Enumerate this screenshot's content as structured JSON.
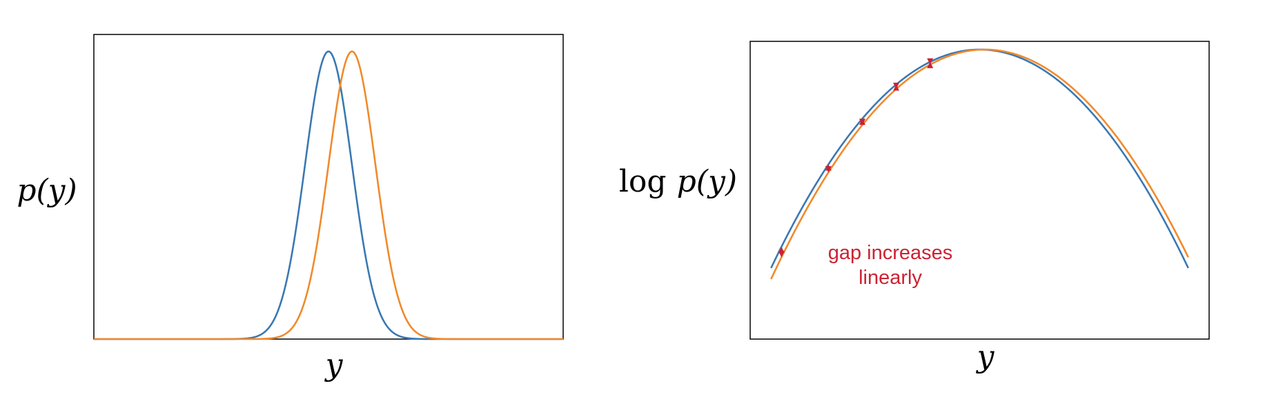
{
  "colors": {
    "blue": "#3a78b3",
    "orange": "#f08a2b",
    "annotation": "#cc2233",
    "axes": "#000000"
  },
  "chart_data": [
    {
      "type": "line",
      "xlabel": "y",
      "ylabel": "p(y)",
      "xlim": [
        -10,
        10
      ],
      "ylim": [
        0,
        1.04
      ],
      "grid": false,
      "ticks": false,
      "series": [
        {
          "color": "blue",
          "curve": "gaussian",
          "mean": 0,
          "sd": 1,
          "peak": 1
        },
        {
          "color": "orange",
          "curve": "gaussian",
          "mean": 1,
          "sd": 1,
          "peak": 1
        }
      ]
    },
    {
      "type": "line",
      "xlabel": "y",
      "ylabel_prefix": "log",
      "ylabel": "p(y)",
      "xlim": [
        -4.4,
        4.4
      ],
      "ylim": [
        -10.6,
        0.3
      ],
      "grid": false,
      "ticks": false,
      "series": [
        {
          "color": "blue",
          "curve": "log-gaussian",
          "mean": 0,
          "sd": 1,
          "x_range": [
            -4,
            4
          ]
        },
        {
          "color": "orange",
          "curve": "log-gaussian",
          "mean": 0.1,
          "sd": 1,
          "x_range": [
            -4,
            4
          ]
        }
      ],
      "gap_arrows_x": [
        -3.8,
        -2.9,
        -2.25,
        -1.6,
        -0.95
      ],
      "annotation": {
        "lines": [
          "gap increases",
          "linearly"
        ]
      }
    }
  ]
}
